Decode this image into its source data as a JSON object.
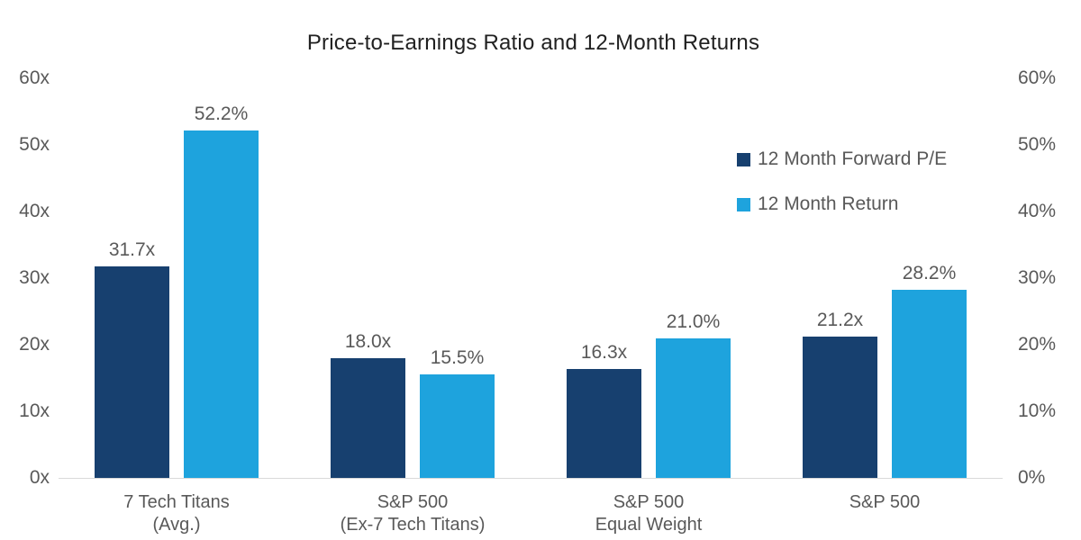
{
  "title": "Price-to-Earnings Ratio and 12-Month Returns",
  "colors": {
    "forward_pe": "#17406F",
    "return": "#1EA3DD",
    "axis_line": "#D9D9D9",
    "tick_text": "#595959",
    "title_text": "#212121",
    "background": "#FFFFFF"
  },
  "chart_data": {
    "type": "bar",
    "title": "Price-to-Earnings Ratio and 12-Month Returns",
    "grid": false,
    "legend_position": "upper-right",
    "categories": [
      [
        "7 Tech Titans",
        "(Avg.)"
      ],
      [
        "S&P 500",
        "(Ex-7 Tech Titans)"
      ],
      [
        "S&P 500",
        "Equal Weight"
      ],
      [
        "S&P 500"
      ]
    ],
    "series": [
      {
        "name": "12 Month Forward P/E",
        "axis": "left",
        "unit": "x",
        "values": [
          31.7,
          18.0,
          16.3,
          21.2
        ],
        "labels": [
          "31.7x",
          "18.0x",
          "16.3x",
          "21.2x"
        ],
        "color": "#17406F"
      },
      {
        "name": "12 Month Return",
        "axis": "right",
        "unit": "%",
        "values": [
          52.2,
          15.5,
          21.0,
          28.2
        ],
        "labels": [
          "52.2%",
          "15.5%",
          "21.0%",
          "28.2%"
        ],
        "color": "#1EA3DD"
      }
    ],
    "left_axis": {
      "ticks": [
        "60x",
        "50x",
        "40x",
        "30x",
        "20x",
        "10x",
        "0x"
      ],
      "range": [
        0,
        60
      ]
    },
    "right_axis": {
      "ticks": [
        "60%",
        "50%",
        "40%",
        "30%",
        "20%",
        "10%",
        "0%"
      ],
      "range": [
        0,
        60
      ]
    }
  }
}
